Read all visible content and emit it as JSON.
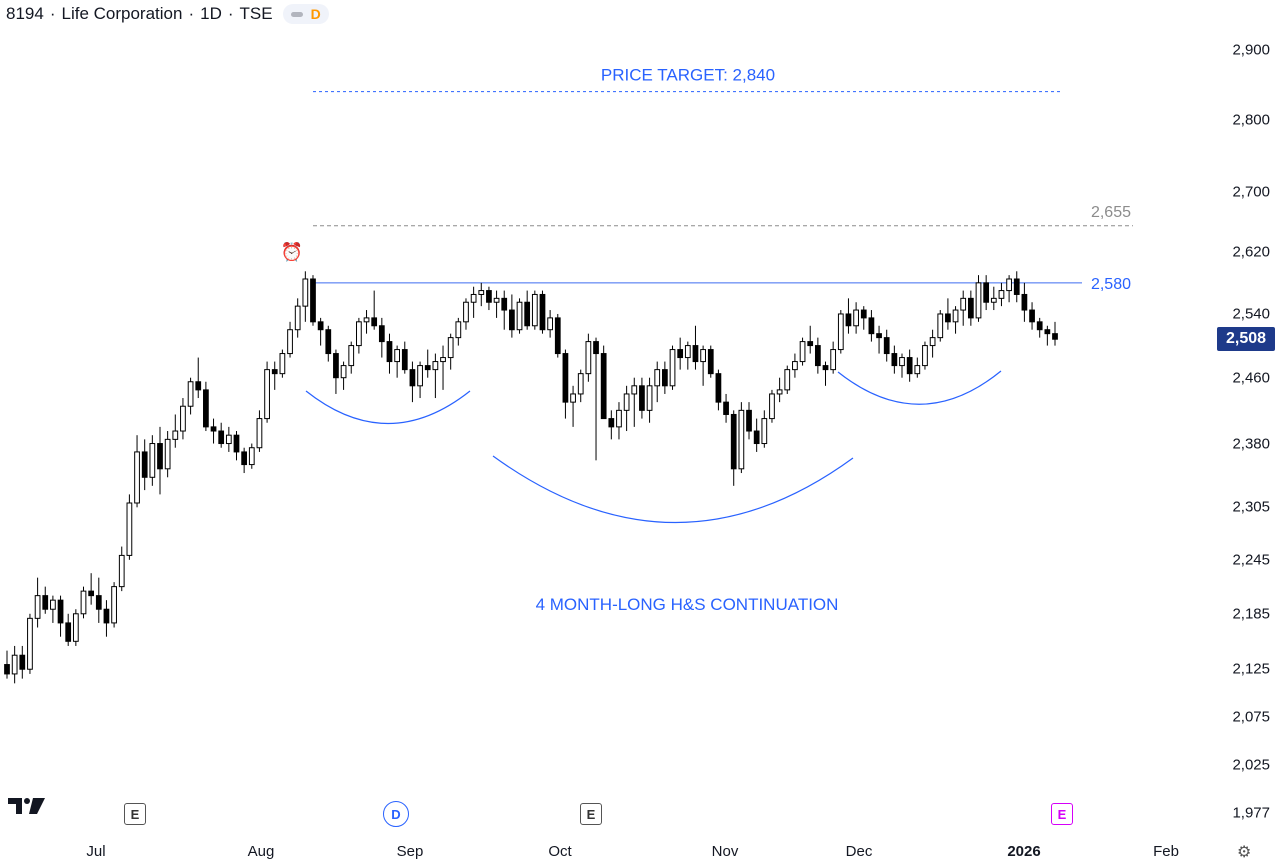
{
  "header": {
    "symbol": "8194",
    "name": "Life Corporation",
    "interval": "1D",
    "exchange": "TSE",
    "separator": "·",
    "badge": "D"
  },
  "price_axis": {
    "labels": [
      "2,900",
      "2,800",
      "2,700",
      "2,620",
      "2,540",
      "2,460",
      "2,380",
      "2,305",
      "2,245",
      "2,185",
      "2,125",
      "2,075",
      "2,025",
      "1,977"
    ]
  },
  "time_axis": {
    "labels": [
      "Jul",
      "Aug",
      "Sep",
      "Oct",
      "Nov",
      "Dec",
      "2026",
      "Feb"
    ]
  },
  "last_price": "2,508",
  "events": [
    "E",
    "D",
    "E",
    "E"
  ],
  "annotations": {
    "price_target": "PRICE TARGET: 2,840",
    "pattern": "4 MONTH-LONG H&S CONTINUATION",
    "neckline": "2,580",
    "resistance": "2,655"
  },
  "colors": {
    "annotation_blue": "#2962ff",
    "neckline_blue": "#3d6cf0",
    "resistance_gray": "#8c8c8c",
    "last_price_bg": "#1e3a8a",
    "candle": "#000000",
    "earnings_future": "#d500f9"
  },
  "chart_data": {
    "type": "candlestick",
    "title": "8194 · Life Corporation · 1D · TSE",
    "ylim": [
      1977,
      2900
    ],
    "y_scale": "log",
    "levels": [
      {
        "label": "PRICE TARGET: 2,840",
        "value": 2840,
        "style": "dashed"
      },
      {
        "label": "2,655",
        "value": 2655,
        "style": "dashed"
      },
      {
        "label": "2,580",
        "value": 2580,
        "style": "solid"
      }
    ],
    "candles": [
      [
        2130,
        2145,
        2115,
        2120
      ],
      [
        2120,
        2150,
        2110,
        2140
      ],
      [
        2140,
        2150,
        2115,
        2125
      ],
      [
        2125,
        2185,
        2120,
        2180
      ],
      [
        2180,
        2225,
        2170,
        2205
      ],
      [
        2205,
        2215,
        2185,
        2190
      ],
      [
        2190,
        2205,
        2175,
        2200
      ],
      [
        2200,
        2205,
        2160,
        2175
      ],
      [
        2175,
        2185,
        2150,
        2155
      ],
      [
        2155,
        2190,
        2150,
        2185
      ],
      [
        2185,
        2215,
        2180,
        2210
      ],
      [
        2210,
        2230,
        2195,
        2205
      ],
      [
        2205,
        2225,
        2175,
        2190
      ],
      [
        2190,
        2200,
        2160,
        2175
      ],
      [
        2175,
        2220,
        2170,
        2215
      ],
      [
        2215,
        2260,
        2210,
        2250
      ],
      [
        2250,
        2320,
        2245,
        2310
      ],
      [
        2310,
        2390,
        2305,
        2370
      ],
      [
        2370,
        2385,
        2325,
        2340
      ],
      [
        2340,
        2390,
        2330,
        2380
      ],
      [
        2380,
        2400,
        2320,
        2350
      ],
      [
        2350,
        2395,
        2340,
        2385
      ],
      [
        2385,
        2415,
        2375,
        2395
      ],
      [
        2395,
        2435,
        2385,
        2425
      ],
      [
        2425,
        2460,
        2415,
        2455
      ],
      [
        2455,
        2485,
        2435,
        2445
      ],
      [
        2445,
        2455,
        2395,
        2400
      ],
      [
        2400,
        2410,
        2380,
        2395
      ],
      [
        2395,
        2405,
        2375,
        2380
      ],
      [
        2380,
        2400,
        2370,
        2390
      ],
      [
        2390,
        2395,
        2360,
        2370
      ],
      [
        2370,
        2375,
        2345,
        2355
      ],
      [
        2355,
        2380,
        2350,
        2375
      ],
      [
        2375,
        2420,
        2370,
        2410
      ],
      [
        2410,
        2480,
        2405,
        2470
      ],
      [
        2470,
        2480,
        2445,
        2465
      ],
      [
        2465,
        2495,
        2460,
        2490
      ],
      [
        2490,
        2530,
        2485,
        2520
      ],
      [
        2520,
        2560,
        2510,
        2550
      ],
      [
        2550,
        2595,
        2530,
        2585
      ],
      [
        2585,
        2590,
        2525,
        2530
      ],
      [
        2530,
        2535,
        2500,
        2520
      ],
      [
        2520,
        2525,
        2480,
        2490
      ],
      [
        2490,
        2495,
        2440,
        2460
      ],
      [
        2460,
        2480,
        2445,
        2475
      ],
      [
        2475,
        2505,
        2465,
        2500
      ],
      [
        2500,
        2535,
        2490,
        2530
      ],
      [
        2530,
        2545,
        2515,
        2535
      ],
      [
        2535,
        2570,
        2520,
        2525
      ],
      [
        2525,
        2535,
        2485,
        2505
      ],
      [
        2505,
        2515,
        2465,
        2480
      ],
      [
        2480,
        2500,
        2460,
        2495
      ],
      [
        2495,
        2505,
        2465,
        2470
      ],
      [
        2470,
        2480,
        2430,
        2450
      ],
      [
        2450,
        2480,
        2435,
        2475
      ],
      [
        2475,
        2495,
        2460,
        2470
      ],
      [
        2470,
        2490,
        2435,
        2480
      ],
      [
        2480,
        2500,
        2445,
        2485
      ],
      [
        2485,
        2515,
        2470,
        2510
      ],
      [
        2510,
        2535,
        2500,
        2530
      ],
      [
        2530,
        2560,
        2520,
        2555
      ],
      [
        2555,
        2575,
        2535,
        2565
      ],
      [
        2565,
        2580,
        2550,
        2570
      ],
      [
        2570,
        2575,
        2545,
        2555
      ],
      [
        2555,
        2570,
        2535,
        2560
      ],
      [
        2560,
        2570,
        2520,
        2545
      ],
      [
        2545,
        2565,
        2510,
        2520
      ],
      [
        2520,
        2560,
        2515,
        2555
      ],
      [
        2555,
        2570,
        2520,
        2525
      ],
      [
        2525,
        2570,
        2520,
        2565
      ],
      [
        2565,
        2570,
        2515,
        2520
      ],
      [
        2520,
        2545,
        2510,
        2535
      ],
      [
        2535,
        2540,
        2485,
        2490
      ],
      [
        2490,
        2495,
        2410,
        2430
      ],
      [
        2430,
        2450,
        2400,
        2440
      ],
      [
        2440,
        2470,
        2430,
        2465
      ],
      [
        2465,
        2515,
        2455,
        2505
      ],
      [
        2505,
        2510,
        2360,
        2490
      ],
      [
        2490,
        2500,
        2410,
        2410
      ],
      [
        2410,
        2420,
        2385,
        2400
      ],
      [
        2400,
        2430,
        2385,
        2420
      ],
      [
        2420,
        2450,
        2395,
        2440
      ],
      [
        2440,
        2460,
        2400,
        2450
      ],
      [
        2450,
        2460,
        2410,
        2420
      ],
      [
        2420,
        2460,
        2405,
        2450
      ],
      [
        2450,
        2480,
        2430,
        2470
      ],
      [
        2470,
        2480,
        2440,
        2450
      ],
      [
        2450,
        2500,
        2445,
        2495
      ],
      [
        2495,
        2510,
        2470,
        2485
      ],
      [
        2485,
        2505,
        2470,
        2500
      ],
      [
        2500,
        2525,
        2470,
        2480
      ],
      [
        2480,
        2500,
        2450,
        2495
      ],
      [
        2495,
        2500,
        2460,
        2465
      ],
      [
        2465,
        2470,
        2420,
        2430
      ],
      [
        2430,
        2440,
        2405,
        2415
      ],
      [
        2415,
        2420,
        2330,
        2350
      ],
      [
        2350,
        2430,
        2345,
        2420
      ],
      [
        2420,
        2430,
        2385,
        2395
      ],
      [
        2395,
        2410,
        2370,
        2380
      ],
      [
        2380,
        2420,
        2375,
        2410
      ],
      [
        2410,
        2445,
        2405,
        2440
      ],
      [
        2440,
        2460,
        2430,
        2445
      ],
      [
        2445,
        2475,
        2440,
        2470
      ],
      [
        2470,
        2490,
        2460,
        2480
      ],
      [
        2480,
        2510,
        2475,
        2505
      ],
      [
        2505,
        2525,
        2490,
        2500
      ],
      [
        2500,
        2510,
        2465,
        2475
      ],
      [
        2475,
        2480,
        2450,
        2470
      ],
      [
        2470,
        2505,
        2465,
        2495
      ],
      [
        2495,
        2545,
        2490,
        2540
      ],
      [
        2540,
        2560,
        2515,
        2525
      ],
      [
        2525,
        2555,
        2515,
        2545
      ],
      [
        2545,
        2550,
        2520,
        2535
      ],
      [
        2535,
        2545,
        2505,
        2515
      ],
      [
        2515,
        2525,
        2490,
        2510
      ],
      [
        2510,
        2520,
        2480,
        2490
      ],
      [
        2490,
        2500,
        2465,
        2475
      ],
      [
        2475,
        2490,
        2460,
        2485
      ],
      [
        2485,
        2495,
        2455,
        2465
      ],
      [
        2465,
        2485,
        2460,
        2475
      ],
      [
        2475,
        2505,
        2470,
        2500
      ],
      [
        2500,
        2520,
        2485,
        2510
      ],
      [
        2510,
        2545,
        2505,
        2540
      ],
      [
        2540,
        2560,
        2520,
        2530
      ],
      [
        2530,
        2550,
        2515,
        2545
      ],
      [
        2545,
        2570,
        2525,
        2560
      ],
      [
        2560,
        2570,
        2525,
        2535
      ],
      [
        2535,
        2590,
        2530,
        2580
      ],
      [
        2580,
        2590,
        2545,
        2555
      ],
      [
        2555,
        2575,
        2545,
        2560
      ],
      [
        2560,
        2580,
        2550,
        2570
      ],
      [
        2570,
        2590,
        2555,
        2585
      ],
      [
        2585,
        2595,
        2555,
        2565
      ],
      [
        2565,
        2580,
        2530,
        2545
      ],
      [
        2545,
        2555,
        2520,
        2530
      ],
      [
        2530,
        2535,
        2510,
        2520
      ],
      [
        2520,
        2525,
        2500,
        2515
      ],
      [
        2515,
        2530,
        2500,
        2508
      ]
    ]
  }
}
